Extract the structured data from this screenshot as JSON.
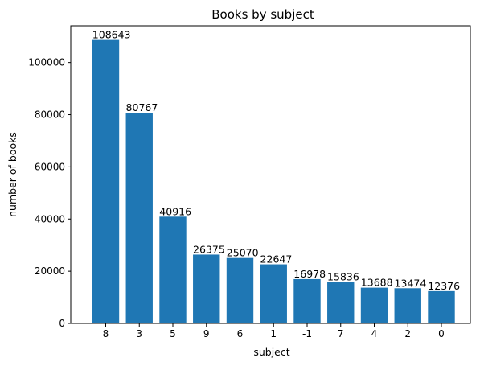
{
  "chart_data": {
    "type": "bar",
    "title": "Books by subject",
    "xlabel": "subject",
    "ylabel": "number of books",
    "categories": [
      "8",
      "3",
      "5",
      "9",
      "6",
      "1",
      "-1",
      "7",
      "4",
      "2",
      "0"
    ],
    "values": [
      108643,
      80767,
      40916,
      26375,
      25070,
      22647,
      16978,
      15836,
      13688,
      13474,
      12376
    ],
    "ylim": [
      0,
      114075
    ],
    "yticks": [
      0,
      20000,
      40000,
      60000,
      80000,
      100000
    ],
    "grid": false,
    "legend": "none",
    "bar_color": "#1f77b4"
  }
}
